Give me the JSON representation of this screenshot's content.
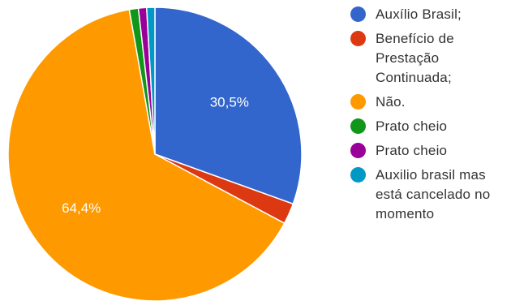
{
  "chart_data": {
    "type": "pie",
    "slices": [
      {
        "label": "Auxílio Brasil;",
        "value": 30.5,
        "color": "#3366cc"
      },
      {
        "label": "Benefício de\nPrestação\nContinuada;",
        "value": 2.3,
        "color": "#dc3912"
      },
      {
        "label": "Não.",
        "value": 64.4,
        "color": "#ff9900"
      },
      {
        "label": "Prato cheio",
        "value": 1.0,
        "color": "#109618"
      },
      {
        "label": "Prato cheio",
        "value": 0.9,
        "color": "#990099"
      },
      {
        "label": "Auxilio brasil mas\nestá cancelado no\nmomento",
        "value": 0.9,
        "color": "#0099c6"
      }
    ],
    "data_labels": [
      {
        "slice": 0,
        "text": "30,5%"
      },
      {
        "slice": 2,
        "text": "64,4%"
      }
    ],
    "legend_position": "right",
    "start_angle_deg": 90,
    "direction": "clockwise"
  }
}
